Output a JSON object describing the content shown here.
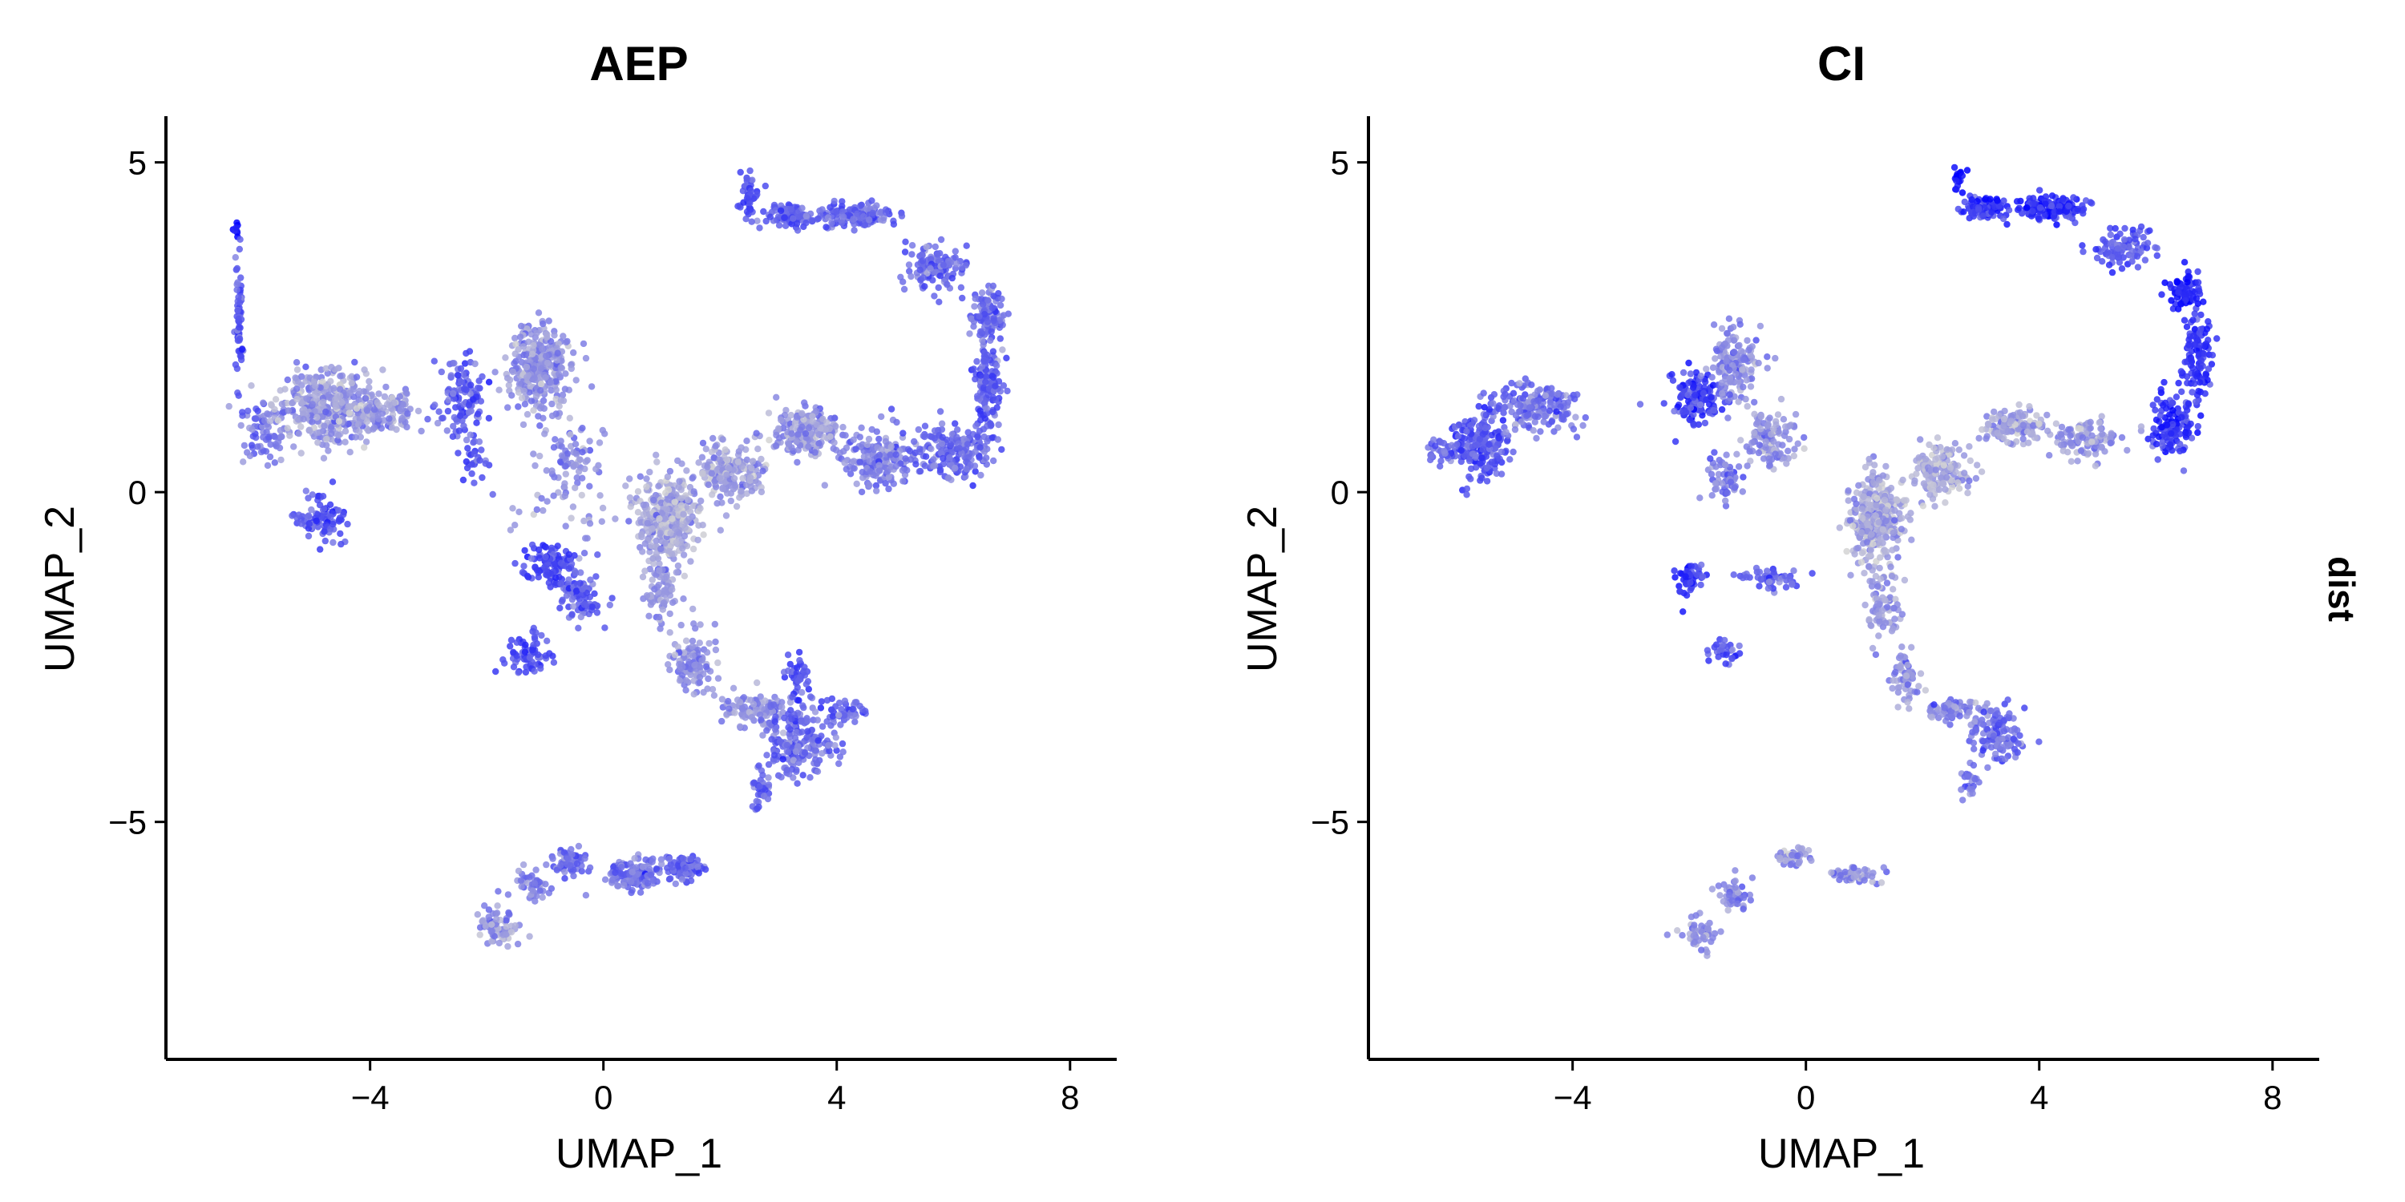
{
  "chart_data": {
    "type": "scatter",
    "description_of_encoding": "",
    "panels": [
      {
        "title": "AEP",
        "xlabel": "UMAP_1",
        "ylabel": "UMAP_2",
        "xlim": [
          -7.5,
          8.8
        ],
        "ylim": [
          -8.6,
          5.7
        ],
        "xticks": [
          -4,
          0,
          4,
          8
        ],
        "xtick_labels": [
          "−4",
          "0",
          "4",
          "8"
        ],
        "yticks": [
          5,
          0,
          -5
        ],
        "ytick_labels": [
          "5",
          "0",
          "−5"
        ],
        "clusters": [
          {
            "x": -6.3,
            "y": 4.0,
            "sx": 0.05,
            "sy": 0.1,
            "n": 8,
            "c": 0.95
          },
          {
            "x": -6.25,
            "y": 2.5,
            "sx": 0.06,
            "sy": 0.9,
            "n": 60,
            "c": 0.55
          },
          {
            "x": -5.8,
            "y": 0.9,
            "sx": 0.35,
            "sy": 0.35,
            "n": 70,
            "c": 0.45
          },
          {
            "x": -4.7,
            "y": 1.3,
            "sx": 0.7,
            "sy": 0.45,
            "n": 420,
            "c": 0.25
          },
          {
            "x": -3.6,
            "y": 1.2,
            "sx": 0.45,
            "sy": 0.25,
            "n": 90,
            "c": 0.3
          },
          {
            "x": -4.8,
            "y": -0.4,
            "sx": 0.35,
            "sy": 0.3,
            "n": 90,
            "c": 0.6
          },
          {
            "x": -2.4,
            "y": 1.5,
            "sx": 0.35,
            "sy": 0.5,
            "n": 110,
            "c": 0.55
          },
          {
            "x": -1.1,
            "y": 1.9,
            "sx": 0.45,
            "sy": 0.55,
            "n": 330,
            "c": 0.3
          },
          {
            "x": -2.2,
            "y": 0.5,
            "sx": 0.2,
            "sy": 0.3,
            "n": 30,
            "c": 0.6
          },
          {
            "x": -0.5,
            "y": 0.5,
            "sx": 0.35,
            "sy": 0.35,
            "n": 60,
            "c": 0.35
          },
          {
            "x": -0.4,
            "y": -0.2,
            "sx": 0.9,
            "sy": 0.5,
            "n": 45,
            "c": 0.3
          },
          {
            "x": -0.9,
            "y": -1.1,
            "sx": 0.4,
            "sy": 0.25,
            "n": 110,
            "c": 0.65
          },
          {
            "x": -0.4,
            "y": -1.6,
            "sx": 0.3,
            "sy": 0.3,
            "n": 80,
            "c": 0.55
          },
          {
            "x": -1.2,
            "y": -2.5,
            "sx": 0.35,
            "sy": 0.25,
            "n": 70,
            "c": 0.65
          },
          {
            "x": 1.1,
            "y": -0.4,
            "sx": 0.4,
            "sy": 0.55,
            "n": 350,
            "c": 0.2
          },
          {
            "x": 1.0,
            "y": -1.5,
            "sx": 0.22,
            "sy": 0.45,
            "n": 80,
            "c": 0.3
          },
          {
            "x": 1.5,
            "y": -2.6,
            "sx": 0.3,
            "sy": 0.35,
            "n": 110,
            "c": 0.3
          },
          {
            "x": 2.6,
            "y": -3.3,
            "sx": 0.55,
            "sy": 0.2,
            "n": 110,
            "c": 0.35
          },
          {
            "x": 3.4,
            "y": -3.8,
            "sx": 0.5,
            "sy": 0.45,
            "n": 200,
            "c": 0.5
          },
          {
            "x": 3.3,
            "y": -2.8,
            "sx": 0.15,
            "sy": 0.3,
            "n": 40,
            "c": 0.65
          },
          {
            "x": 4.2,
            "y": -3.3,
            "sx": 0.3,
            "sy": 0.15,
            "n": 40,
            "c": 0.55
          },
          {
            "x": 2.7,
            "y": -4.5,
            "sx": 0.15,
            "sy": 0.25,
            "n": 35,
            "c": 0.5
          },
          {
            "x": 2.2,
            "y": 0.3,
            "sx": 0.5,
            "sy": 0.35,
            "n": 200,
            "c": 0.25
          },
          {
            "x": 3.5,
            "y": 0.9,
            "sx": 0.5,
            "sy": 0.3,
            "n": 200,
            "c": 0.3
          },
          {
            "x": 4.7,
            "y": 0.5,
            "sx": 0.5,
            "sy": 0.35,
            "n": 170,
            "c": 0.4
          },
          {
            "x": 6.0,
            "y": 0.6,
            "sx": 0.6,
            "sy": 0.35,
            "n": 180,
            "c": 0.5
          },
          {
            "x": 6.6,
            "y": 1.6,
            "sx": 0.2,
            "sy": 0.6,
            "n": 130,
            "c": 0.55
          },
          {
            "x": 6.6,
            "y": 2.7,
            "sx": 0.25,
            "sy": 0.35,
            "n": 110,
            "c": 0.5
          },
          {
            "x": 5.7,
            "y": 3.4,
            "sx": 0.45,
            "sy": 0.3,
            "n": 120,
            "c": 0.5
          },
          {
            "x": 4.3,
            "y": 4.2,
            "sx": 0.5,
            "sy": 0.15,
            "n": 140,
            "c": 0.5
          },
          {
            "x": 3.2,
            "y": 4.2,
            "sx": 0.35,
            "sy": 0.15,
            "n": 80,
            "c": 0.55
          },
          {
            "x": 2.5,
            "y": 4.5,
            "sx": 0.15,
            "sy": 0.3,
            "n": 50,
            "c": 0.6
          },
          {
            "x": -0.6,
            "y": -5.6,
            "sx": 0.25,
            "sy": 0.15,
            "n": 60,
            "c": 0.5
          },
          {
            "x": 0.5,
            "y": -5.8,
            "sx": 0.5,
            "sy": 0.2,
            "n": 130,
            "c": 0.45
          },
          {
            "x": 1.4,
            "y": -5.7,
            "sx": 0.25,
            "sy": 0.15,
            "n": 70,
            "c": 0.55
          },
          {
            "x": -1.2,
            "y": -6.0,
            "sx": 0.3,
            "sy": 0.2,
            "n": 50,
            "c": 0.4
          },
          {
            "x": -1.8,
            "y": -6.6,
            "sx": 0.3,
            "sy": 0.25,
            "n": 70,
            "c": 0.3
          }
        ]
      },
      {
        "title": "CI",
        "xlabel": "UMAP_1",
        "ylabel": "UMAP_2",
        "xlim": [
          -7.5,
          8.8
        ],
        "ylim": [
          -8.6,
          5.7
        ],
        "xticks": [
          -4,
          0,
          4,
          8
        ],
        "xtick_labels": [
          "−4",
          "0",
          "4",
          "8"
        ],
        "yticks": [
          5,
          0,
          -5
        ],
        "ytick_labels": [
          "5",
          "0",
          "−5"
        ],
        "clusters": [
          {
            "x": -5.6,
            "y": 0.7,
            "sx": 0.45,
            "sy": 0.4,
            "n": 200,
            "c": 0.6
          },
          {
            "x": -4.6,
            "y": 1.3,
            "sx": 0.6,
            "sy": 0.3,
            "n": 180,
            "c": 0.45
          },
          {
            "x": -6.2,
            "y": 0.6,
            "sx": 0.2,
            "sy": 0.15,
            "n": 30,
            "c": 0.5
          },
          {
            "x": -1.9,
            "y": 1.4,
            "sx": 0.35,
            "sy": 0.3,
            "n": 140,
            "c": 0.7
          },
          {
            "x": -1.2,
            "y": 1.9,
            "sx": 0.35,
            "sy": 0.45,
            "n": 150,
            "c": 0.35
          },
          {
            "x": -0.6,
            "y": 0.8,
            "sx": 0.35,
            "sy": 0.35,
            "n": 120,
            "c": 0.3
          },
          {
            "x": -1.4,
            "y": 0.2,
            "sx": 0.3,
            "sy": 0.3,
            "n": 60,
            "c": 0.45
          },
          {
            "x": -2.0,
            "y": -1.3,
            "sx": 0.2,
            "sy": 0.2,
            "n": 50,
            "c": 0.75
          },
          {
            "x": -0.6,
            "y": -1.3,
            "sx": 0.45,
            "sy": 0.15,
            "n": 50,
            "c": 0.55
          },
          {
            "x": -1.4,
            "y": -2.4,
            "sx": 0.25,
            "sy": 0.15,
            "n": 30,
            "c": 0.6
          },
          {
            "x": 1.2,
            "y": -0.4,
            "sx": 0.4,
            "sy": 0.55,
            "n": 320,
            "c": 0.2
          },
          {
            "x": 1.3,
            "y": -1.7,
            "sx": 0.25,
            "sy": 0.45,
            "n": 80,
            "c": 0.25
          },
          {
            "x": 1.7,
            "y": -2.8,
            "sx": 0.2,
            "sy": 0.35,
            "n": 60,
            "c": 0.3
          },
          {
            "x": 2.6,
            "y": -3.3,
            "sx": 0.45,
            "sy": 0.15,
            "n": 70,
            "c": 0.35
          },
          {
            "x": 3.3,
            "y": -3.7,
            "sx": 0.35,
            "sy": 0.35,
            "n": 110,
            "c": 0.5
          },
          {
            "x": 2.8,
            "y": -4.4,
            "sx": 0.15,
            "sy": 0.25,
            "n": 25,
            "c": 0.45
          },
          {
            "x": 2.3,
            "y": 0.3,
            "sx": 0.45,
            "sy": 0.35,
            "n": 150,
            "c": 0.2
          },
          {
            "x": 3.5,
            "y": 1.0,
            "sx": 0.45,
            "sy": 0.2,
            "n": 130,
            "c": 0.25
          },
          {
            "x": 4.8,
            "y": 0.8,
            "sx": 0.5,
            "sy": 0.25,
            "n": 110,
            "c": 0.3
          },
          {
            "x": 6.3,
            "y": 1.0,
            "sx": 0.3,
            "sy": 0.35,
            "n": 120,
            "c": 0.75
          },
          {
            "x": 6.7,
            "y": 2.0,
            "sx": 0.2,
            "sy": 0.6,
            "n": 110,
            "c": 0.75
          },
          {
            "x": 6.5,
            "y": 3.1,
            "sx": 0.25,
            "sy": 0.25,
            "n": 70,
            "c": 0.85
          },
          {
            "x": 5.5,
            "y": 3.7,
            "sx": 0.45,
            "sy": 0.25,
            "n": 90,
            "c": 0.6
          },
          {
            "x": 4.2,
            "y": 4.3,
            "sx": 0.5,
            "sy": 0.15,
            "n": 150,
            "c": 0.8
          },
          {
            "x": 3.1,
            "y": 4.3,
            "sx": 0.35,
            "sy": 0.15,
            "n": 80,
            "c": 0.75
          },
          {
            "x": 2.6,
            "y": 4.7,
            "sx": 0.1,
            "sy": 0.15,
            "n": 20,
            "c": 0.9
          },
          {
            "x": -0.2,
            "y": -5.5,
            "sx": 0.25,
            "sy": 0.12,
            "n": 40,
            "c": 0.3
          },
          {
            "x": 0.8,
            "y": -5.8,
            "sx": 0.4,
            "sy": 0.1,
            "n": 50,
            "c": 0.35
          },
          {
            "x": -1.2,
            "y": -6.1,
            "sx": 0.3,
            "sy": 0.2,
            "n": 50,
            "c": 0.35
          },
          {
            "x": -1.8,
            "y": -6.7,
            "sx": 0.25,
            "sy": 0.2,
            "n": 50,
            "c": 0.3
          }
        ]
      }
    ],
    "strip_label": "dist",
    "color_low": "#d3d3d3",
    "color_high": "#0000ff",
    "grid": false,
    "legend": "none"
  }
}
